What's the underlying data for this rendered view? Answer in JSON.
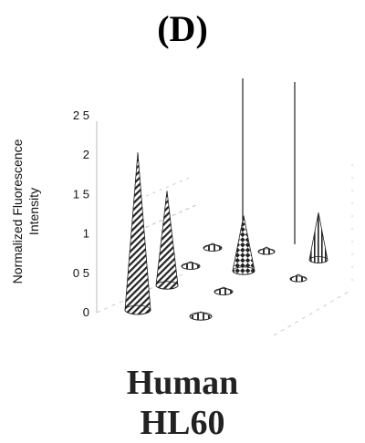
{
  "panel_label": "(D)",
  "caption": {
    "line1": "Human",
    "line2": "HL60"
  },
  "chart_data": {
    "type": "bar",
    "style": "3d-cone",
    "ylabel": [
      "Normalized Fluorescence",
      "Intensity"
    ],
    "yticks": [
      "0",
      "0.5",
      "1",
      "1.5",
      "2",
      "2.5"
    ],
    "ylim": [
      0,
      2.5
    ],
    "cones": [
      {
        "value": 2.0,
        "pattern": "diagonal-hatch"
      },
      {
        "value": 1.2,
        "pattern": "diagonal-hatch"
      },
      {
        "value": 0.05,
        "pattern": "plain"
      },
      {
        "value": 0.05,
        "pattern": "plain"
      },
      {
        "value": 0.05,
        "pattern": "plain"
      },
      {
        "value": 0.05,
        "pattern": "plain"
      },
      {
        "value": 0.7,
        "pattern": "checker"
      },
      {
        "value": 0.05,
        "pattern": "plain"
      },
      {
        "value": 0.05,
        "pattern": "plain"
      },
      {
        "value": 0.6,
        "pattern": "vertical-stripe"
      }
    ]
  }
}
